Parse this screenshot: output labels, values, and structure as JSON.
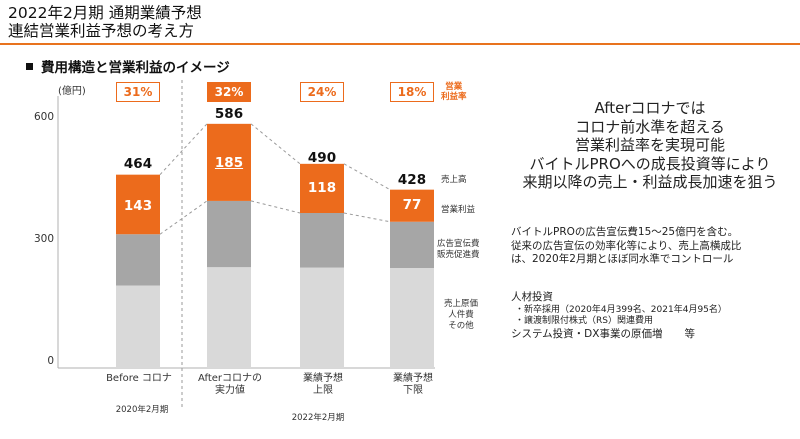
{
  "header": {
    "title_line1": "2022年2月期 通期業績予想",
    "title_line2": "連結営業利益予想の考え方",
    "accent_color": "#ec6b1c"
  },
  "section_title": "費用構造と営業利益のイメージ",
  "chart_data": {
    "type": "bar",
    "stacked": true,
    "unit_label": "(億円)",
    "ylim": [
      0,
      600
    ],
    "yticks": [
      "0",
      "300",
      "600"
    ],
    "categories": [
      "Before コロナ",
      "Afterコロナの\n実力値",
      "業績予想\n上限",
      "業績予想\n下限"
    ],
    "totals": [
      464,
      586,
      490,
      428
    ],
    "margins": [
      "31%",
      "32%",
      "24%",
      "18%"
    ],
    "margin_header": "営業\n利益率",
    "highlight_index": 1,
    "series": [
      {
        "name": "売上原価\n人件費\nその他",
        "color": "#d9d9d9",
        "values": [
          198,
          242,
          241,
          240
        ]
      },
      {
        "name": "広告宣伝費\n販売促進費",
        "color": "#a6a6a6",
        "values": [
          123,
          159,
          131,
          111
        ]
      },
      {
        "name": "営業利益",
        "color": "#ec6b1c",
        "values": [
          143,
          185,
          118,
          77
        ]
      }
    ],
    "total_legend": "売上高",
    "period_labels": [
      "2020年2月期",
      "2022年2月期"
    ]
  },
  "callout": {
    "lines": [
      "Afterコロナでは",
      "コロナ前水準を超える",
      "営業利益率を実現可能",
      "バイトルPROへの成長投資等により",
      "来期以降の売上・利益成長加速を狙う"
    ]
  },
  "note_ad": {
    "lines": [
      "バイトルPROの広告宣伝費15～25億円を含む。",
      "従来の広告宣伝の効率化等により、売上高横成比",
      "は、2020年2月期とほぼ同水準でコントロール"
    ]
  },
  "note_cost": {
    "head": "人材投資",
    "sub1": "・新卒採用（2020年4月399名、2021年4月95名）",
    "sub2": "・譲渡制限付株式（RS）関連費用",
    "tail": "システム投資・DX事業の原価増",
    "tail_suffix": "等"
  }
}
